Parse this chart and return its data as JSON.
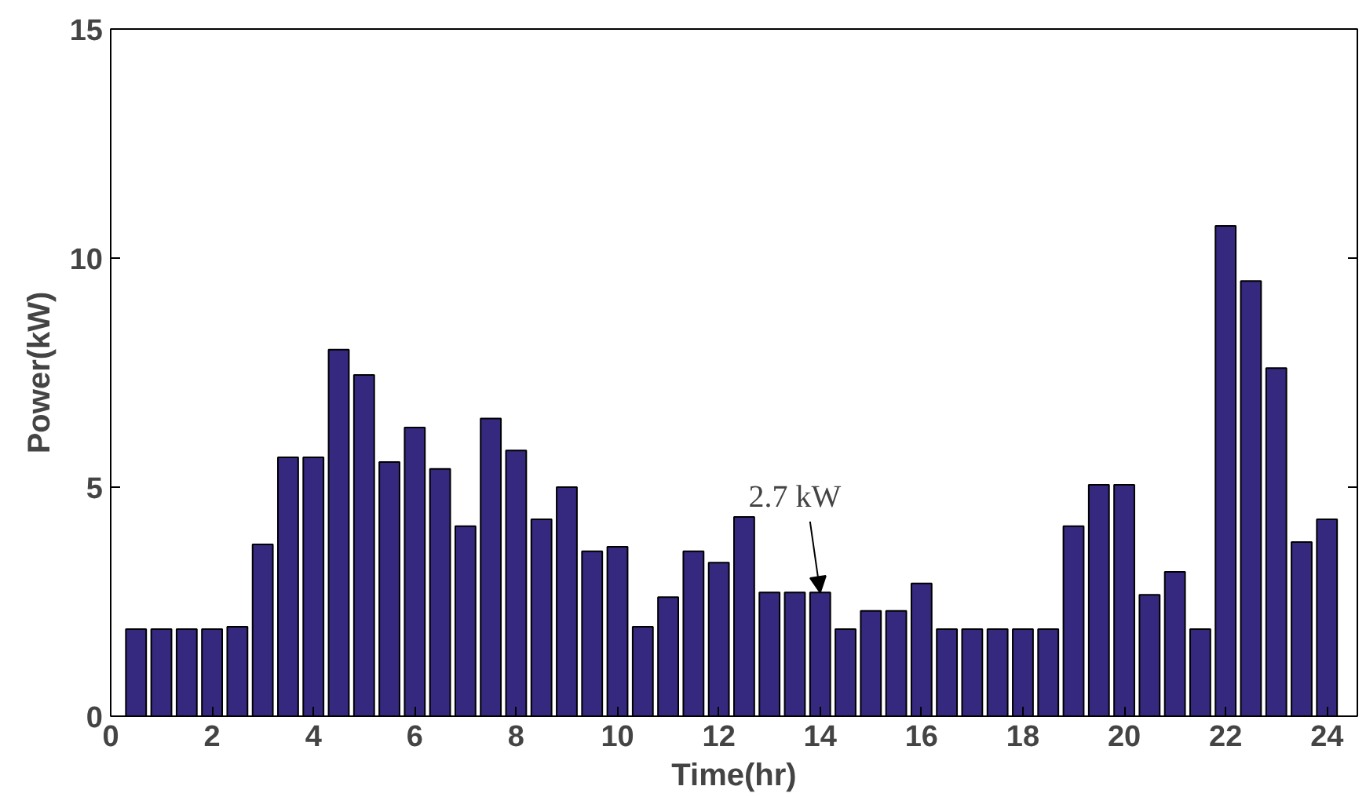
{
  "chart_data": {
    "type": "bar",
    "xlabel": "Time(hr)",
    "ylabel": "Power(kW)",
    "x": [
      0.5,
      1,
      1.5,
      2,
      2.5,
      3,
      3.5,
      4,
      4.5,
      5,
      5.5,
      6,
      6.5,
      7,
      7.5,
      8,
      8.5,
      9,
      9.5,
      10,
      10.5,
      11,
      11.5,
      12,
      12.5,
      13,
      13.5,
      14,
      14.5,
      15,
      15.5,
      16,
      16.5,
      17,
      17.5,
      18,
      18.5,
      19,
      19.5,
      20,
      20.5,
      21,
      21.5,
      22,
      22.5,
      23,
      23.5,
      24
    ],
    "values": [
      1.9,
      1.9,
      1.9,
      1.9,
      1.95,
      3.75,
      5.65,
      5.65,
      8.0,
      7.45,
      5.55,
      6.3,
      5.4,
      4.15,
      6.5,
      5.8,
      4.3,
      5.0,
      3.6,
      3.7,
      1.95,
      2.6,
      3.6,
      3.35,
      4.35,
      2.7,
      2.7,
      2.7,
      1.9,
      2.3,
      2.3,
      2.9,
      1.9,
      1.9,
      1.9,
      1.9,
      1.9,
      4.15,
      5.05,
      5.05,
      2.65,
      3.15,
      1.9,
      10.7,
      9.5,
      7.6,
      3.8,
      4.3
    ],
    "color": "#35287f",
    "xlim": [
      0,
      24.6
    ],
    "ylim": [
      0,
      15
    ],
    "xticks": [
      0,
      2,
      4,
      6,
      8,
      10,
      12,
      14,
      16,
      18,
      20,
      22,
      24
    ],
    "yticks": [
      0,
      5,
      10,
      15
    ],
    "grid": false,
    "annotations": [
      {
        "text": "2.7 kW",
        "x": 14,
        "y": 2.7
      }
    ]
  }
}
